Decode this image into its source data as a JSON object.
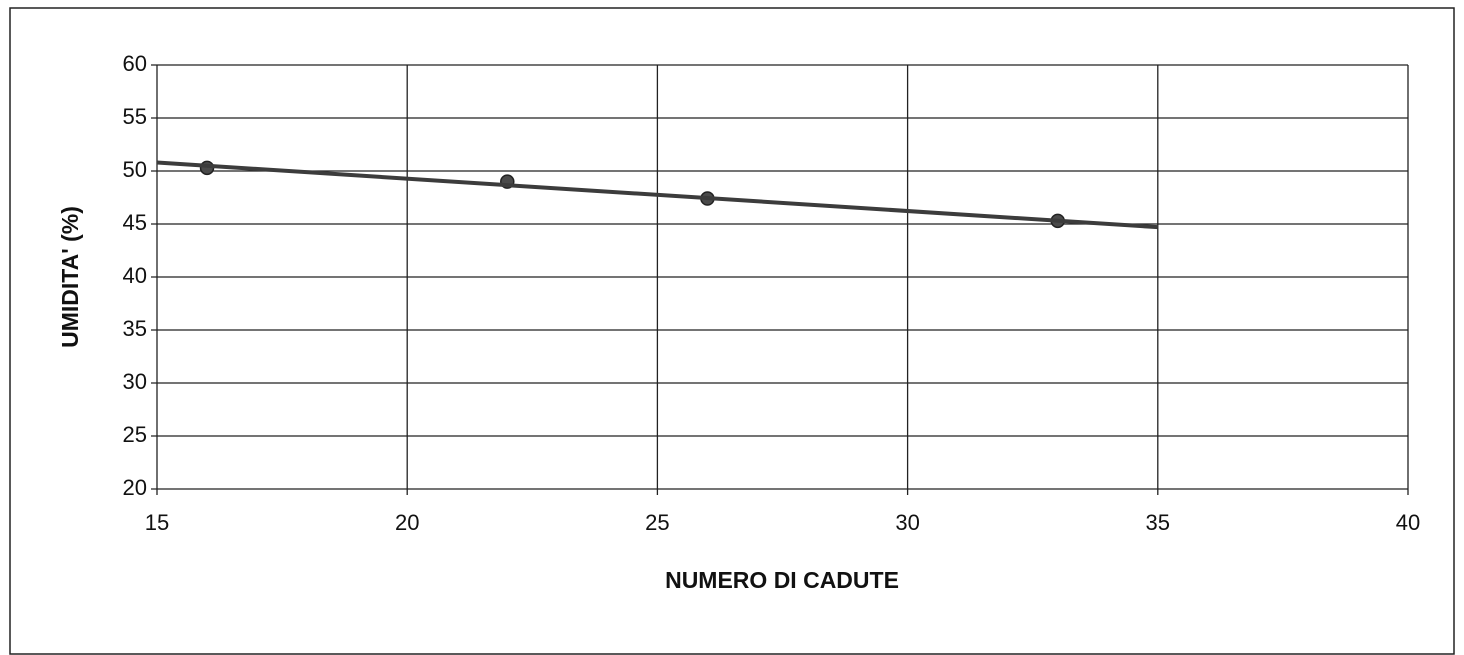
{
  "chart_data": {
    "type": "scatter",
    "xlabel": "NUMERO DI CADUTE",
    "ylabel": "UMIDITA' (%)",
    "series": [
      {
        "x": [
          16,
          22,
          26,
          33
        ],
        "values": [
          50.3,
          49.0,
          47.4,
          45.3
        ],
        "color": "#4a4a4a",
        "mode": "markers"
      },
      {
        "x": [
          15,
          35
        ],
        "values": [
          50.8,
          44.7
        ],
        "color": "#3c3c3c",
        "mode": "line"
      }
    ],
    "xlim": [
      15,
      40
    ],
    "xticks": [
      15,
      20,
      25,
      30,
      35,
      40
    ],
    "ylim": [
      20,
      60
    ],
    "yticks": [
      20,
      25,
      30,
      35,
      40,
      45,
      50,
      55,
      60
    ],
    "grid": true
  }
}
